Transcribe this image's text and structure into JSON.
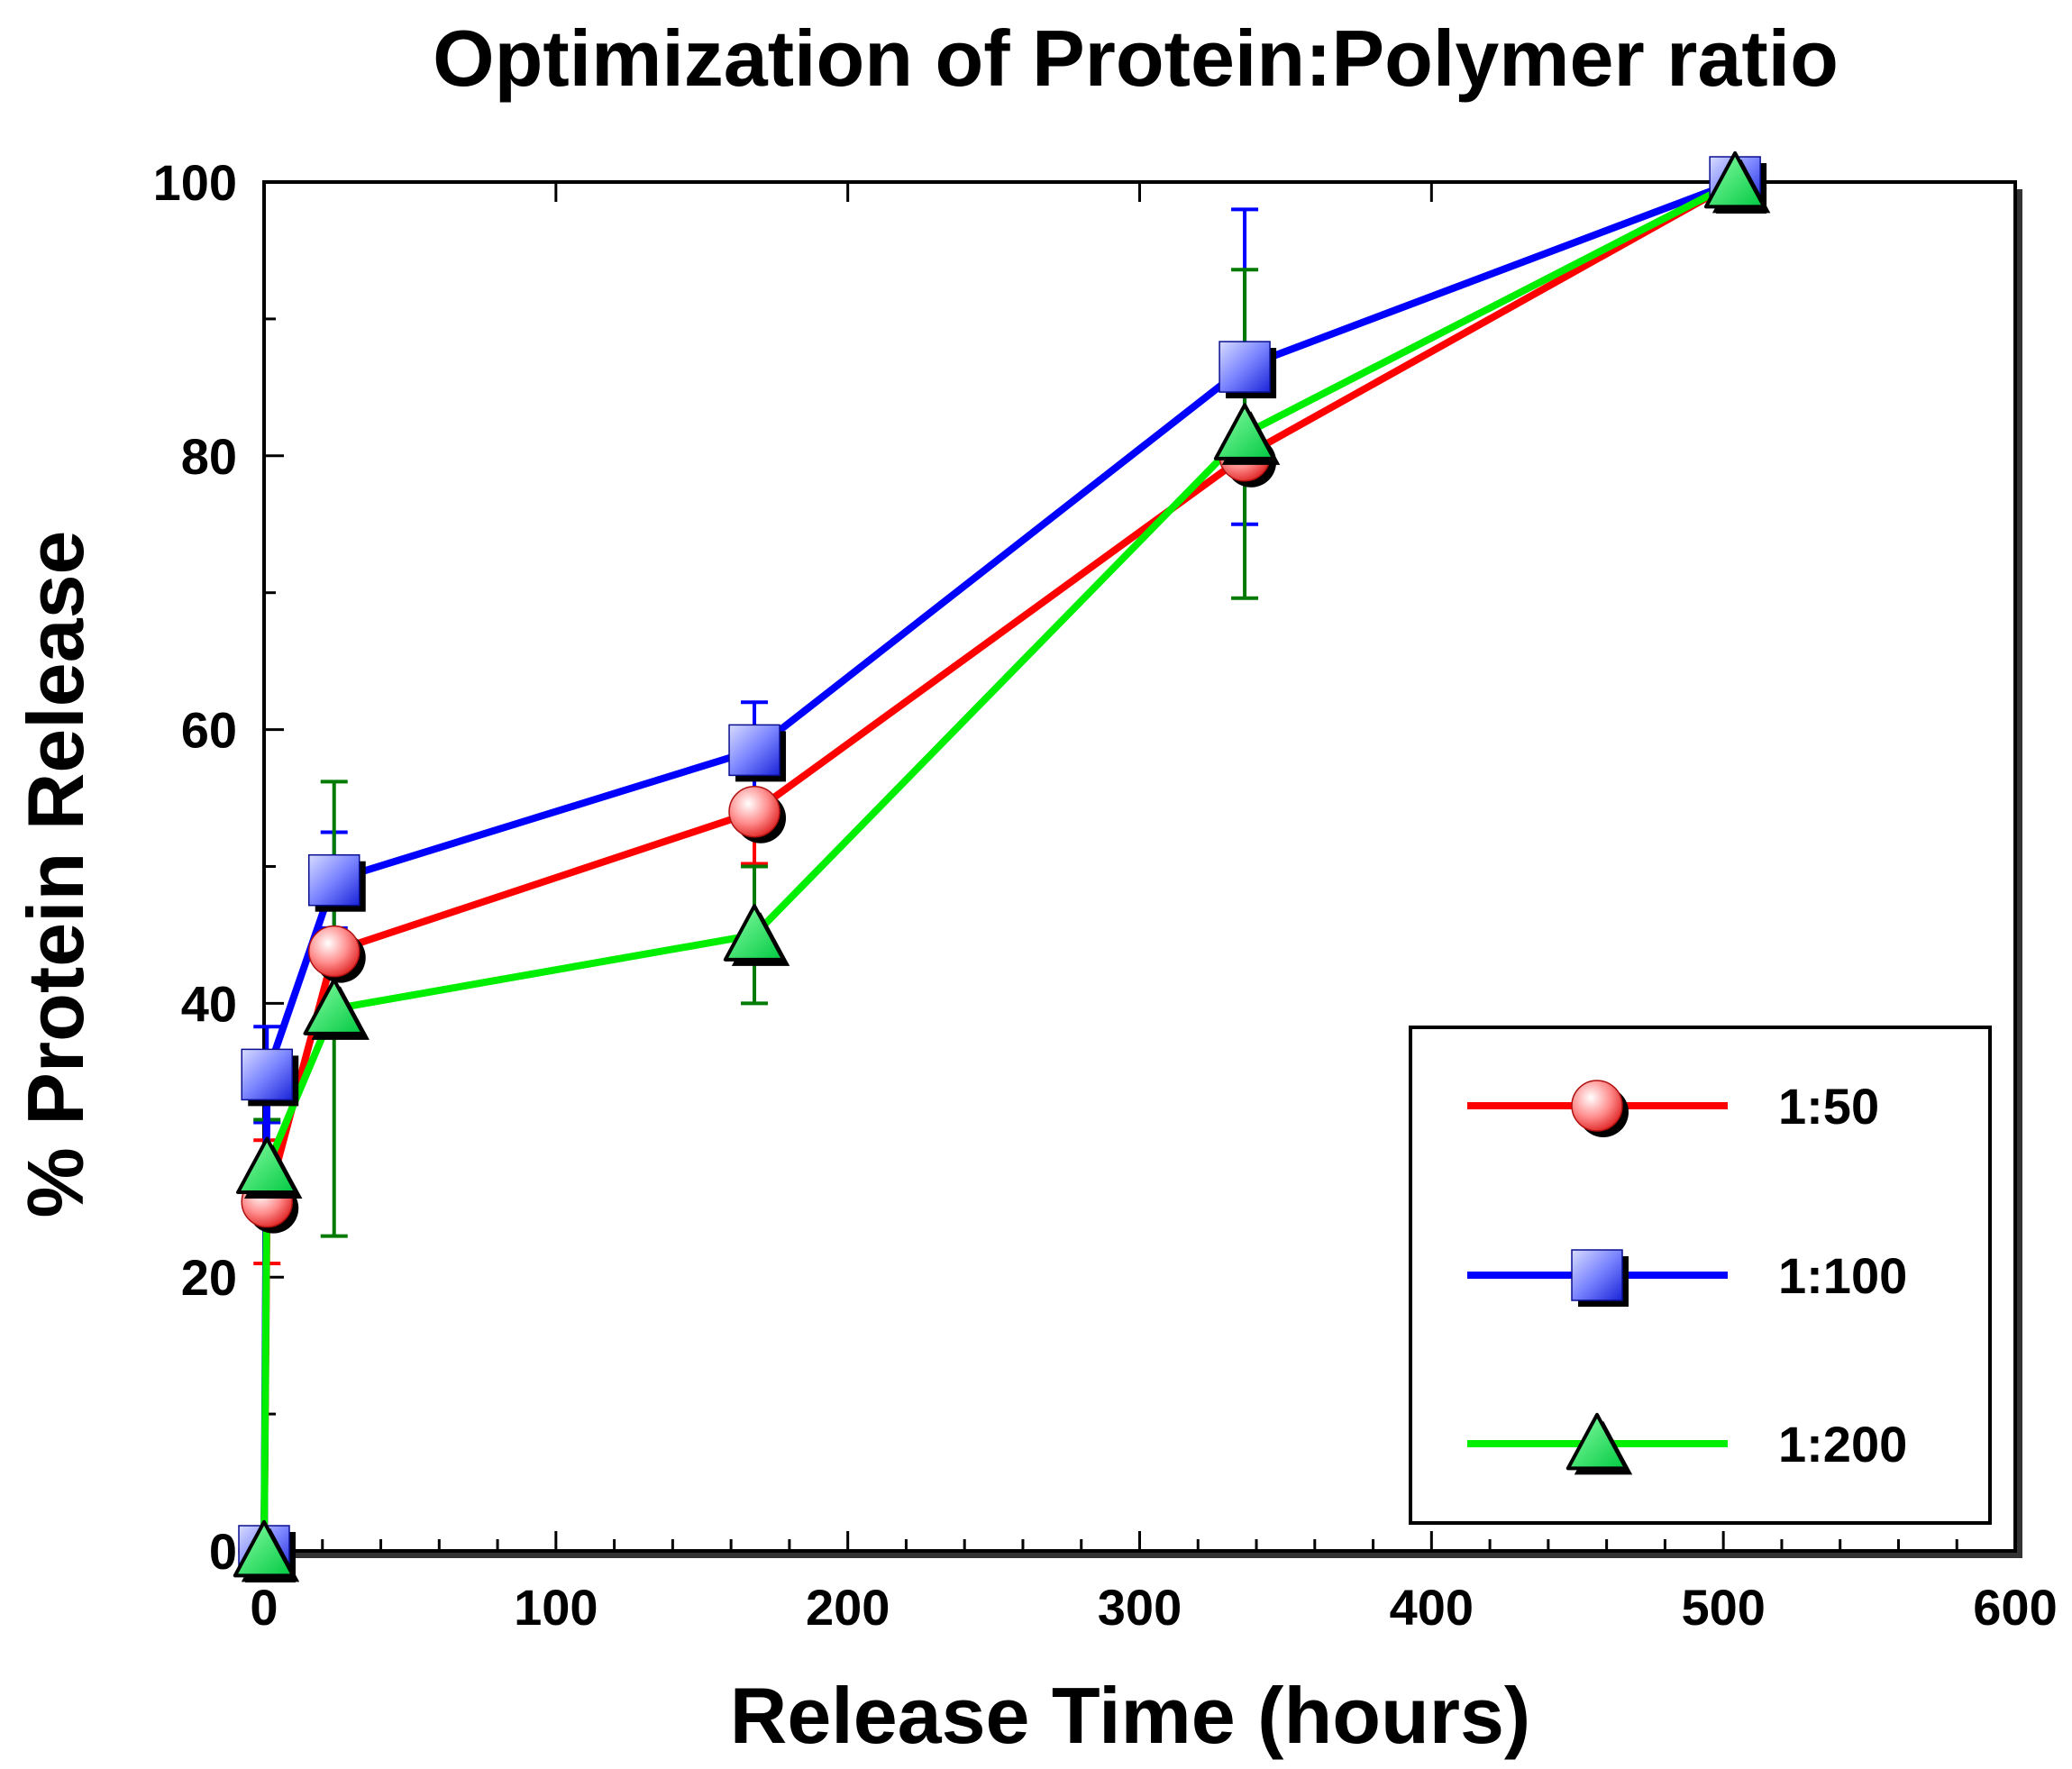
{
  "chart_data": {
    "type": "line",
    "title": "Optimization of Protein:Polymer ratio",
    "xlabel": "Release Time (hours)",
    "ylabel": "% Protein Release",
    "xlim": [
      0,
      600
    ],
    "ylim": [
      0,
      100
    ],
    "xticks": [
      0,
      100,
      200,
      300,
      400,
      500,
      600
    ],
    "yticks": [
      0,
      20,
      40,
      60,
      80,
      100
    ],
    "grid": false,
    "legend_position": "bottom-right",
    "series": [
      {
        "name": "1:50",
        "color": "#ff0000",
        "marker": "circle",
        "x": [
          0,
          1,
          24,
          168,
          336,
          504
        ],
        "y": [
          0,
          25.5,
          43.8,
          54.0,
          80.0,
          100
        ],
        "err": [
          0,
          4.5,
          0,
          3.8,
          0,
          0
        ]
      },
      {
        "name": "1:100",
        "color": "#0000ff",
        "marker": "square",
        "x": [
          0,
          1,
          24,
          168,
          336,
          504
        ],
        "y": [
          0,
          34.8,
          49.0,
          58.5,
          86.5,
          100
        ],
        "err": [
          0,
          3.5,
          3.5,
          3.5,
          11.5,
          0
        ]
      },
      {
        "name": "1:200",
        "color": "#00ee00",
        "errcolor": "#007a00",
        "marker": "triangle",
        "x": [
          0,
          1,
          24,
          168,
          336,
          504
        ],
        "y": [
          0,
          28.0,
          39.6,
          45.0,
          81.6,
          100
        ],
        "err": [
          0,
          3.5,
          16.6,
          5.0,
          12.0,
          0
        ]
      }
    ]
  }
}
